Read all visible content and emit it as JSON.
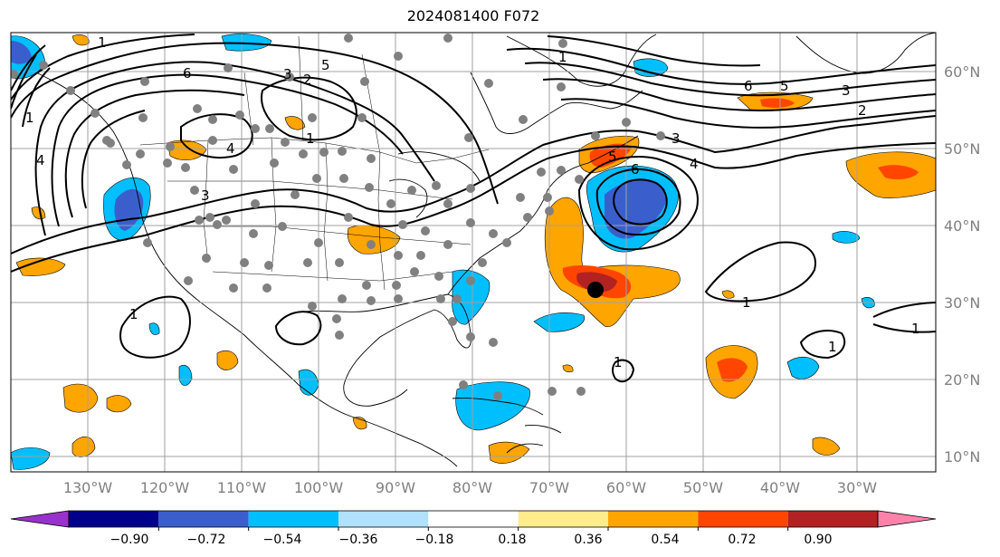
{
  "title": "2024081400 F072",
  "map": {
    "lon_range": [
      -140,
      -18
    ],
    "lat_range": [
      8,
      65
    ],
    "lon_labels": [
      "130°W",
      "120°W",
      "110°W",
      "100°W",
      "90°W",
      "80°W",
      "70°W",
      "60°W",
      "50°W",
      "40°W",
      "30°W"
    ],
    "lat_labels": [
      "10°N",
      "20°N",
      "30°N",
      "40°N",
      "50°N",
      "60°N"
    ],
    "contour_labels": [
      "6",
      "5",
      "3",
      "2",
      "1",
      "1",
      "4",
      "3",
      "1",
      "4",
      "3",
      "6",
      "5",
      "4",
      "6",
      "5",
      "3",
      "2",
      "1",
      "1",
      "1",
      "1",
      "1",
      "1"
    ]
  },
  "colorbar": {
    "tick_labels": [
      "−0.90",
      "−0.72",
      "−0.54",
      "−0.36",
      "−0.18",
      "0.18",
      "0.36",
      "0.54",
      "0.72",
      "0.90"
    ],
    "colors": [
      "#9932cc",
      "#00008b",
      "#3a5fcd",
      "#00bfff",
      "#b0e2ff",
      "#ffffff",
      "#ffec8b",
      "#ffa500",
      "#ff4500",
      "#b22222",
      "#ff82ab"
    ]
  }
}
